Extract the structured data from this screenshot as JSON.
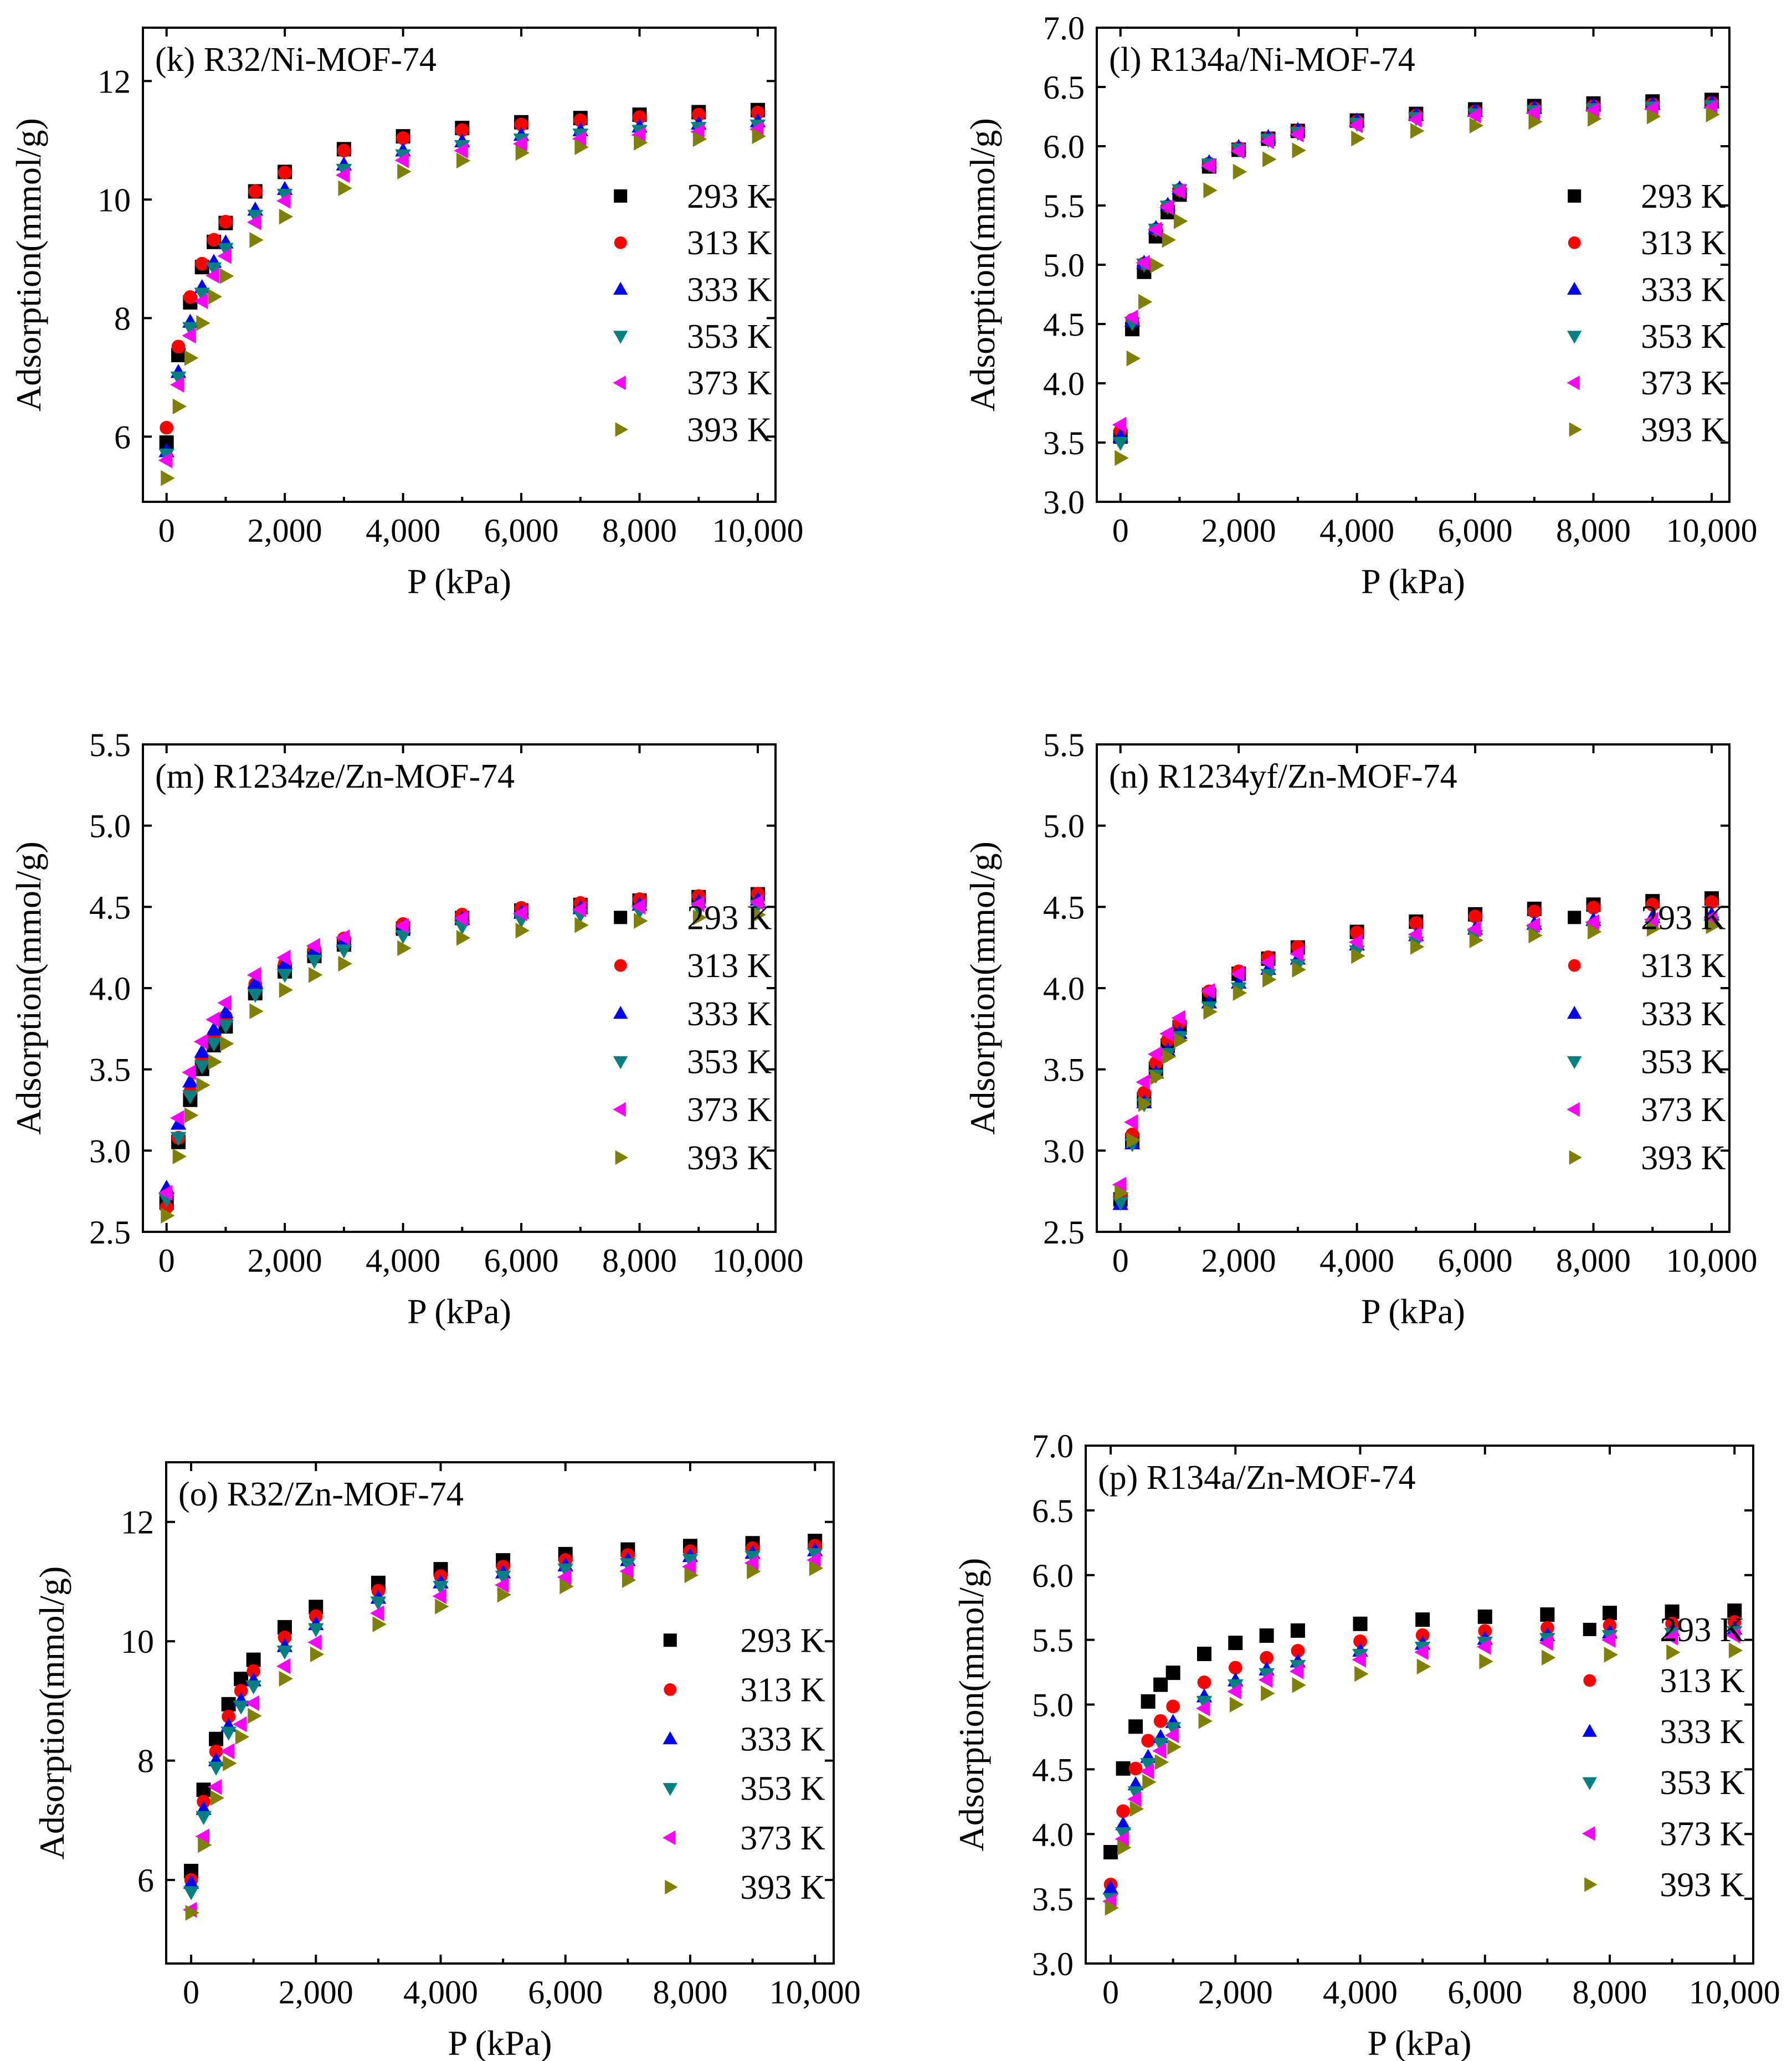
{
  "figure": {
    "x_label": "P (kPa)",
    "y_label": "Adsorption(mmol/g)",
    "legend_entries": [
      "293 K",
      "313 K",
      "333 K",
      "353 K",
      "373 K",
      "393 K"
    ],
    "series_colors": [
      "#000000",
      "#ff0000",
      "#0000ff",
      "#008080",
      "#ff00ff",
      "#808000"
    ],
    "series_markers": [
      "square",
      "circle",
      "triangle-up",
      "triangle-down",
      "triangle-left",
      "triangle-right"
    ]
  },
  "chart_data": [
    {
      "id": "k",
      "type": "scatter",
      "title": "(k) R32/Ni-MOF-74",
      "xlabel": "P (kPa)",
      "ylabel": "Adsorption(mmol/g)",
      "xlim": [
        -400,
        10300
      ],
      "ylim": [
        4.9,
        12.9
      ],
      "x_ticks": [
        "0",
        "2,000",
        "4,000",
        "6,000",
        "8,000",
        "10,000"
      ],
      "x_tick_values": [
        0,
        2000,
        4000,
        6000,
        8000,
        10000
      ],
      "y_ticks": [
        "6",
        "8",
        "10",
        "12"
      ],
      "y_tick_values": [
        6,
        8,
        10,
        12
      ],
      "curve": {
        "model": "langmuir",
        "x": [
          0,
          200,
          400,
          600,
          800,
          1000,
          1500,
          2000,
          3000,
          4000,
          5000,
          6000,
          7000,
          8000,
          9000,
          10000
        ]
      },
      "series": [
        {
          "name": "293 K",
          "y0": 5.9,
          "ymax": 11.85,
          "b": 0.00165
        },
        {
          "name": "313 K",
          "y0": 6.15,
          "ymax": 11.8,
          "b": 0.0016
        },
        {
          "name": "333 K",
          "y0": 5.75,
          "ymax": 11.7,
          "b": 0.00145
        },
        {
          "name": "353 K",
          "y0": 5.7,
          "ymax": 11.65,
          "b": 0.0014
        },
        {
          "name": "373 K",
          "y0": 5.6,
          "ymax": 11.6,
          "b": 0.00135
        },
        {
          "name": "393 K",
          "y0": 5.3,
          "ymax": 11.55,
          "b": 0.0012
        }
      ]
    },
    {
      "id": "l",
      "type": "scatter",
      "title": "(l) R134a/Ni-MOF-74",
      "xlabel": "P (kPa)",
      "ylabel": "Adsorption(mmol/g)",
      "xlim": [
        -400,
        10300
      ],
      "ylim": [
        3.0,
        7.0
      ],
      "x_ticks": [
        "0",
        "2,000",
        "4,000",
        "6,000",
        "8,000",
        "10,000"
      ],
      "x_tick_values": [
        0,
        2000,
        4000,
        6000,
        8000,
        10000
      ],
      "y_ticks": [
        "3.0",
        "3.5",
        "4.0",
        "4.5",
        "5.0",
        "5.5",
        "6.0",
        "6.5",
        "7.0"
      ],
      "y_tick_values": [
        3.0,
        3.5,
        4.0,
        4.5,
        5.0,
        5.5,
        6.0,
        6.5,
        7.0
      ],
      "curve": {
        "model": "langmuir",
        "x": [
          0,
          200,
          400,
          600,
          800,
          1000,
          1500,
          2000,
          2500,
          3000,
          4000,
          5000,
          6000,
          7000,
          8000,
          9000,
          10000
        ]
      },
      "series": [
        {
          "name": "293 K",
          "y0": 3.55,
          "ymax": 6.52,
          "b": 0.0022
        },
        {
          "name": "313 K",
          "y0": 3.6,
          "ymax": 6.48,
          "b": 0.0024
        },
        {
          "name": "333 K",
          "y0": 3.55,
          "ymax": 6.48,
          "b": 0.0025
        },
        {
          "name": "353 K",
          "y0": 3.5,
          "ymax": 6.45,
          "b": 0.0026
        },
        {
          "name": "373 K",
          "y0": 3.65,
          "ymax": 6.44,
          "b": 0.0024
        },
        {
          "name": "393 K",
          "y0": 3.37,
          "ymax": 6.42,
          "b": 0.0019
        }
      ]
    },
    {
      "id": "m",
      "type": "scatter",
      "title": "(m) R1234ze/Zn-MOF-74",
      "xlabel": "P (kPa)",
      "ylabel": "Adsorption(mmol/g)",
      "xlim": [
        -400,
        10300
      ],
      "ylim": [
        2.5,
        5.5
      ],
      "x_ticks": [
        "0",
        "2,000",
        "4,000",
        "6,000",
        "8,000",
        "10,000"
      ],
      "x_tick_values": [
        0,
        2000,
        4000,
        6000,
        8000,
        10000
      ],
      "y_ticks": [
        "2.5",
        "3.0",
        "3.5",
        "4.0",
        "4.5",
        "5.0",
        "5.5"
      ],
      "y_tick_values": [
        2.5,
        3.0,
        3.5,
        4.0,
        4.5,
        5.0,
        5.5
      ],
      "curve": {
        "model": "langmuir",
        "x": [
          0,
          200,
          400,
          600,
          800,
          1000,
          1500,
          2000,
          2500,
          3000,
          4000,
          5000,
          6000,
          7000,
          8000,
          9000,
          10000
        ]
      },
      "series": [
        {
          "name": "293 K",
          "y0": 2.68,
          "ymax": 4.75,
          "b": 0.0011
        },
        {
          "name": "313 K",
          "y0": 2.65,
          "ymax": 4.73,
          "b": 0.0013
        },
        {
          "name": "333 K",
          "y0": 2.77,
          "ymax": 4.68,
          "b": 0.0013
        },
        {
          "name": "353 K",
          "y0": 2.7,
          "ymax": 4.66,
          "b": 0.0012
        },
        {
          "name": "373 K",
          "y0": 2.74,
          "ymax": 4.64,
          "b": 0.0016
        },
        {
          "name": "393 K",
          "y0": 2.6,
          "ymax": 4.62,
          "b": 0.0011
        }
      ]
    },
    {
      "id": "n",
      "type": "scatter",
      "title": "(n) R1234yf/Zn-MOF-74",
      "xlabel": "P (kPa)",
      "ylabel": "Adsorption(mmol/g)",
      "xlim": [
        -400,
        10300
      ],
      "ylim": [
        2.5,
        5.5
      ],
      "x_ticks": [
        "0",
        "2,000",
        "4,000",
        "6,000",
        "8,000",
        "10,000"
      ],
      "x_tick_values": [
        0,
        2000,
        4000,
        6000,
        8000,
        10000
      ],
      "y_ticks": [
        "2.5",
        "3.0",
        "3.5",
        "4.0",
        "4.5",
        "5.0",
        "5.5"
      ],
      "y_tick_values": [
        2.5,
        3.0,
        3.5,
        4.0,
        4.5,
        5.0,
        5.5
      ],
      "curve": {
        "model": "langmuir",
        "x": [
          0,
          200,
          400,
          600,
          800,
          1000,
          1500,
          2000,
          2500,
          3000,
          4000,
          5000,
          6000,
          7000,
          8000,
          9000,
          10000
        ]
      },
      "series": [
        {
          "name": "293 K",
          "y0": 2.7,
          "ymax": 4.72,
          "b": 0.0011
        },
        {
          "name": "313 K",
          "y0": 2.72,
          "ymax": 4.68,
          "b": 0.0012
        },
        {
          "name": "333 K",
          "y0": 2.67,
          "ymax": 4.6,
          "b": 0.0012
        },
        {
          "name": "353 K",
          "y0": 2.68,
          "ymax": 4.55,
          "b": 0.0012
        },
        {
          "name": "373 K",
          "y0": 2.79,
          "ymax": 4.55,
          "b": 0.0014
        },
        {
          "name": "393 K",
          "y0": 2.74,
          "ymax": 4.53,
          "b": 0.0011
        }
      ]
    },
    {
      "id": "o",
      "type": "scatter",
      "title": "(o) R32/Zn-MOF-74",
      "xlabel": "P (kPa)",
      "ylabel": "Adsorption(mmol/g)",
      "xlim": [
        -400,
        10300
      ],
      "ylim": [
        4.6,
        13.0
      ],
      "x_ticks": [
        "0",
        "2,000",
        "4,000",
        "6,000",
        "8,000",
        "10,000"
      ],
      "x_tick_values": [
        0,
        2000,
        4000,
        6000,
        8000,
        10000
      ],
      "y_ticks": [
        "6",
        "8",
        "10",
        "12"
      ],
      "y_tick_values": [
        6,
        8,
        10,
        12
      ],
      "curve": {
        "model": "langmuir",
        "x": [
          0,
          200,
          400,
          600,
          800,
          1000,
          1500,
          2000,
          3000,
          4000,
          5000,
          6000,
          7000,
          8000,
          9000,
          10000
        ]
      },
      "series": [
        {
          "name": "293 K",
          "y0": 6.15,
          "ymax": 12.05,
          "b": 0.0015
        },
        {
          "name": "313 K",
          "y0": 6.0,
          "ymax": 12.0,
          "b": 0.0014
        },
        {
          "name": "333 K",
          "y0": 5.95,
          "ymax": 11.95,
          "b": 0.0013
        },
        {
          "name": "353 K",
          "y0": 5.8,
          "ymax": 11.9,
          "b": 0.0013
        },
        {
          "name": "373 K",
          "y0": 5.5,
          "ymax": 11.85,
          "b": 0.0012
        },
        {
          "name": "393 K",
          "y0": 5.45,
          "ymax": 11.75,
          "b": 0.0011
        }
      ]
    },
    {
      "id": "p",
      "type": "scatter",
      "title": "(p) R134a/Zn-MOF-74",
      "xlabel": "P (kPa)",
      "ylabel": "Adsorption(mmol/g)",
      "xlim": [
        -400,
        10300
      ],
      "ylim": [
        3.0,
        7.0
      ],
      "x_ticks": [
        "0",
        "2,000",
        "4,000",
        "6,000",
        "8,000",
        "10,000"
      ],
      "x_tick_values": [
        0,
        2000,
        4000,
        6000,
        8000,
        10000
      ],
      "y_ticks": [
        "3.0",
        "3.5",
        "4.0",
        "4.5",
        "5.0",
        "5.5",
        "6.0",
        "6.5",
        "7.0"
      ],
      "y_tick_values": [
        3.0,
        3.5,
        4.0,
        4.5,
        5.0,
        5.5,
        6.0,
        6.5,
        7.0
      ],
      "curve": {
        "model": "langmuir",
        "x": [
          0,
          200,
          400,
          600,
          800,
          1000,
          1500,
          2000,
          2500,
          3000,
          4000,
          5000,
          6000,
          7000,
          8000,
          9000,
          10000
        ]
      },
      "series": [
        {
          "name": "293 K",
          "y0": 3.86,
          "ymax": 5.8,
          "b": 0.0025
        },
        {
          "name": "313 K",
          "y0": 3.61,
          "ymax": 5.75,
          "b": 0.0018
        },
        {
          "name": "333 K",
          "y0": 3.58,
          "ymax": 5.72,
          "b": 0.0015
        },
        {
          "name": "353 K",
          "y0": 3.5,
          "ymax": 5.7,
          "b": 0.0015
        },
        {
          "name": "373 K",
          "y0": 3.48,
          "ymax": 5.68,
          "b": 0.0014
        },
        {
          "name": "393 K",
          "y0": 3.43,
          "ymax": 5.56,
          "b": 0.0014
        }
      ]
    }
  ]
}
